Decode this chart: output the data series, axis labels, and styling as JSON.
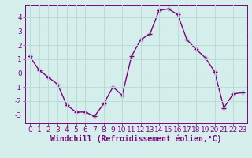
{
  "x": [
    0,
    1,
    2,
    3,
    4,
    5,
    6,
    7,
    8,
    9,
    10,
    11,
    12,
    13,
    14,
    15,
    16,
    17,
    18,
    19,
    20,
    21,
    22,
    23
  ],
  "y": [
    1.2,
    0.2,
    -0.3,
    -0.8,
    -2.3,
    -2.8,
    -2.8,
    -3.1,
    -2.2,
    -1.0,
    -1.6,
    1.2,
    2.4,
    2.8,
    4.5,
    4.6,
    4.2,
    2.4,
    1.7,
    1.1,
    0.1,
    -2.5,
    -1.5,
    -1.4
  ],
  "line_color": "#800080",
  "marker": "+",
  "marker_size": 5,
  "marker_color": "#800080",
  "xlabel": "Windchill (Refroidissement éolien,°C)",
  "xlim": [
    -0.5,
    23.5
  ],
  "ylim": [
    -3.6,
    4.9
  ],
  "yticks": [
    -3,
    -2,
    -1,
    0,
    1,
    2,
    3,
    4
  ],
  "xticks": [
    0,
    1,
    2,
    3,
    4,
    5,
    6,
    7,
    8,
    9,
    10,
    11,
    12,
    13,
    14,
    15,
    16,
    17,
    18,
    19,
    20,
    21,
    22,
    23
  ],
  "background_color": "#d5eeeb",
  "grid_color": "#b8ddd9",
  "axis_color": "#800080",
  "tick_label_color": "#800080",
  "xlabel_color": "#800080",
  "xlabel_fontsize": 7,
  "tick_fontsize": 6.5,
  "linewidth": 1.0
}
